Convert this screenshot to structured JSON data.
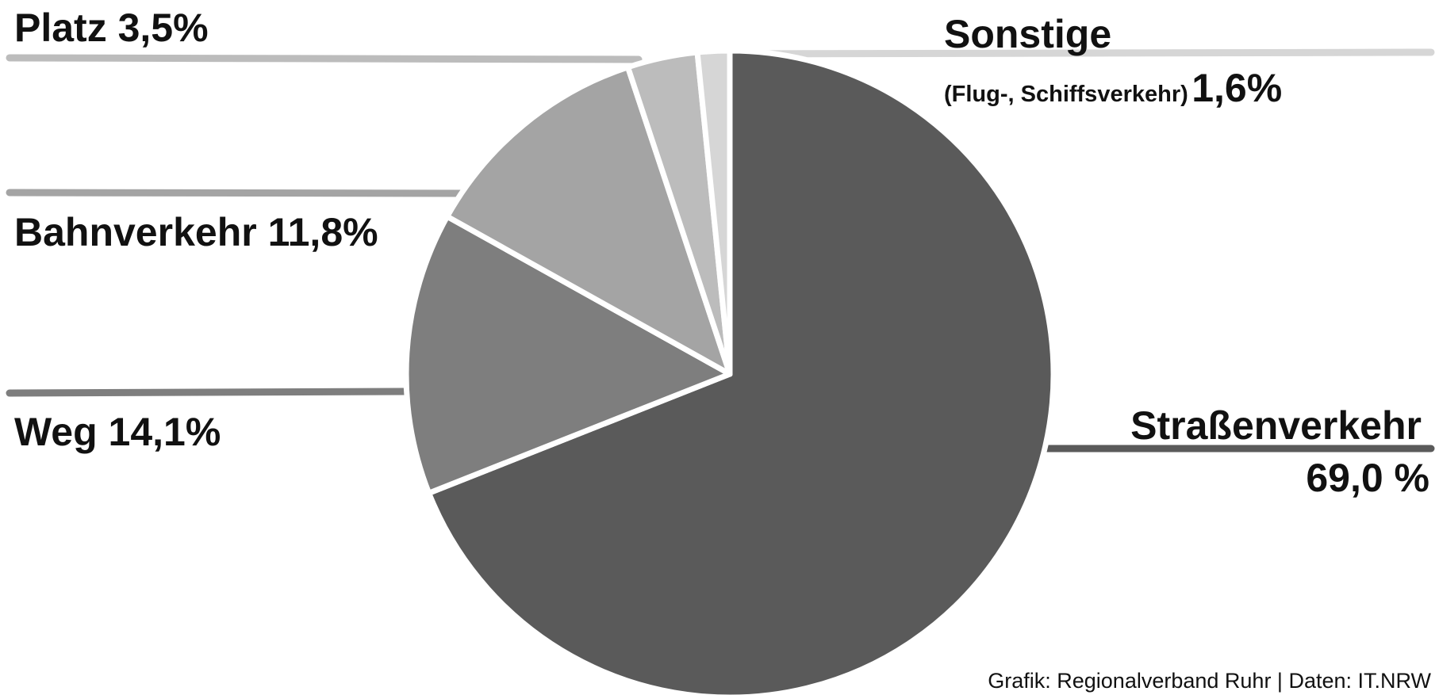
{
  "chart_data": {
    "type": "pie",
    "title": "",
    "slices": [
      {
        "key": "strasse",
        "label": "Straßenverkehr",
        "value_text": "69,0 %",
        "value": 69.0,
        "color": "#5a5a5a"
      },
      {
        "key": "weg",
        "label": "Weg",
        "value_text": "14,1%",
        "value": 14.1,
        "color": "#7e7e7e"
      },
      {
        "key": "bahn",
        "label": "Bahnverkehr",
        "value_text": "11,8%",
        "value": 11.8,
        "color": "#a4a4a4"
      },
      {
        "key": "platz",
        "label": "Platz",
        "value_text": "3,5%",
        "value": 3.5,
        "color": "#bcbcbc"
      },
      {
        "key": "sonstige",
        "label": "Sonstige",
        "sublabel": "(Flug-, Schiffsverkehr)",
        "value_text": "1,6%",
        "value": 1.6,
        "color": "#d6d6d6"
      }
    ]
  },
  "labels": {
    "platz": "Platz 3,5%",
    "bahn": "Bahnverkehr 11,8%",
    "weg": "Weg 14,1%",
    "sonstige_title": "Sonstige",
    "sonstige_sub": "(Flug-, Schiffsverkehr)",
    "sonstige_value": "1,6%",
    "strasse_title": "Straßenverkehr",
    "strasse_value": "69,0 %"
  },
  "credit": "Grafik: Regionalverband Ruhr | Daten: IT.NRW"
}
